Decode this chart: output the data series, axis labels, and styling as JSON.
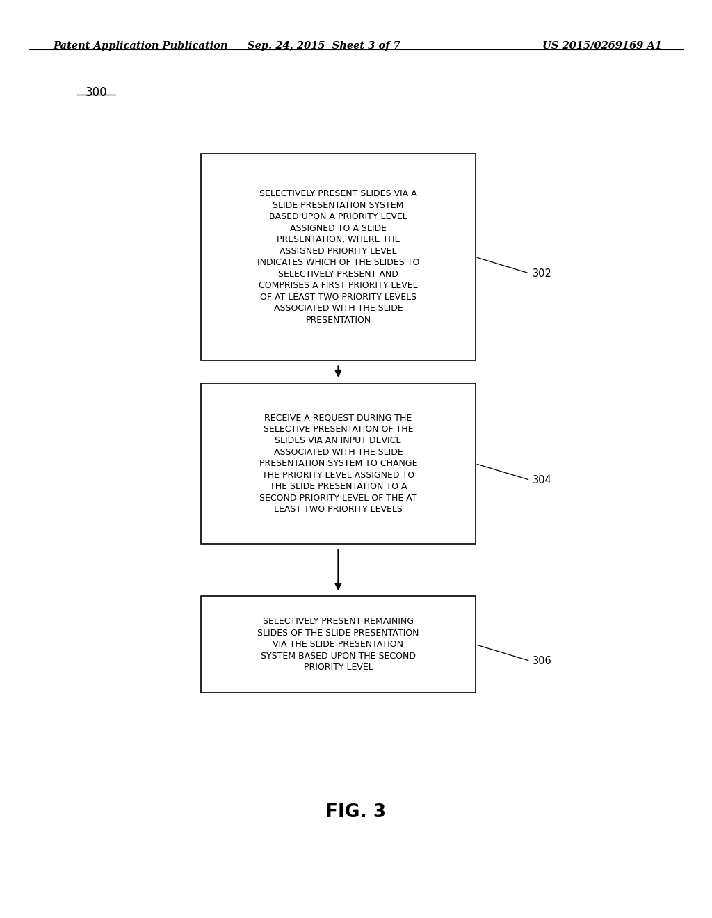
{
  "header_left": "Patent Application Publication",
  "header_center": "Sep. 24, 2015  Sheet 3 of 7",
  "header_right": "US 2015/0269169 A1",
  "fig_label": "300",
  "fig_caption": "FIG. 3",
  "background_color": "#ffffff",
  "box1_text": "SELECTIVELY PRESENT SLIDES VIA A\nSLIDE PRESENTATION SYSTEM\nBASED UPON A PRIORITY LEVEL\nASSIGNED TO A SLIDE\nPRESENTATION, WHERE THE\nASSIGNED PRIORITY LEVEL\nINDICATES WHICH OF THE SLIDES TO\nSELECTIVELY PRESENT AND\nCOMPRISES A FIRST PRIORITY LEVEL\nOF AT LEAST TWO PRIORITY LEVELS\nASSOCIATED WITH THE SLIDE\nPRESENTATION",
  "box1_label": "302",
  "box2_text": "RECEIVE A REQUEST DURING THE\nSELECTIVE PRESENTATION OF THE\nSLIDES VIA AN INPUT DEVICE\nASSOCIATED WITH THE SLIDE\nPRESENTATION SYSTEM TO CHANGE\nTHE PRIORITY LEVEL ASSIGNED TO\nTHE SLIDE PRESENTATION TO A\nSECOND PRIORITY LEVEL OF THE AT\nLEAST TWO PRIORITY LEVELS",
  "box2_label": "304",
  "box3_text": "SELECTIVELY PRESENT REMAINING\nSLIDES OF THE SLIDE PRESENTATION\nVIA THE SLIDE PRESENTATION\nSYSTEM BASED UPON THE SECOND\nPRIORITY LEVEL",
  "box3_label": "306"
}
